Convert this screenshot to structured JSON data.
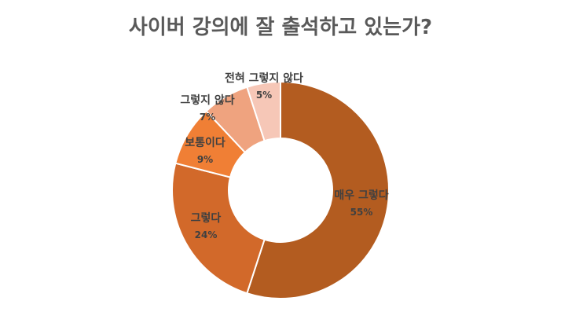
{
  "chart_data": {
    "type": "pie",
    "variant": "donut",
    "title": "사이버 강의에 잘 출석하고 있는가?",
    "categories": [
      "매우 그렇다",
      "그렇다",
      "보통이다",
      "그렇지 않다",
      "전혀 그렇지 않다"
    ],
    "values": [
      55,
      24,
      9,
      7,
      5
    ],
    "value_labels": [
      "55%",
      "24%",
      "9%",
      "7%",
      "5%"
    ],
    "colors": [
      "#B35C20",
      "#D2692A",
      "#F07F35",
      "#EFA37F",
      "#F6C7B7"
    ],
    "legend": "none"
  }
}
